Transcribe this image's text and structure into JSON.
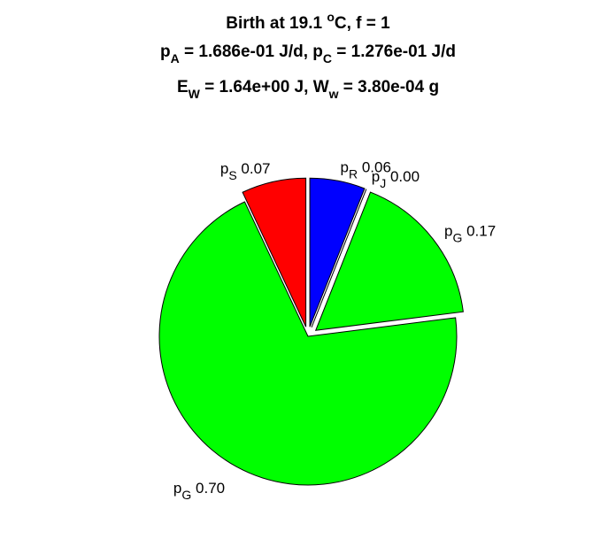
{
  "chart_data": {
    "type": "pie",
    "title": [
      [
        "Birth at 19.1 ",
        "o",
        "C, f = 1"
      ],
      [
        "p",
        "A",
        " = 1.686e-01 J/d, ",
        "p",
        "C",
        " = 1.276e-01 J/d"
      ],
      [
        "E",
        "W",
        " = 1.64e+00 J, ",
        "W",
        "w",
        " = 3.80e-04 g"
      ]
    ],
    "label_symbol": "p",
    "categories": [
      "S",
      "G",
      "G",
      "J",
      "R"
    ],
    "values": [
      0.07,
      0.7,
      0.17,
      0.0,
      0.06
    ],
    "value_labels": [
      "0.07",
      "0.70",
      "0.17",
      "0.00",
      "0.06"
    ],
    "colors": [
      "#ff0000",
      "#00ff00",
      "#00ff00",
      "#ffffff",
      "#0000ff"
    ],
    "explode": [
      true,
      false,
      true,
      true,
      true
    ]
  }
}
